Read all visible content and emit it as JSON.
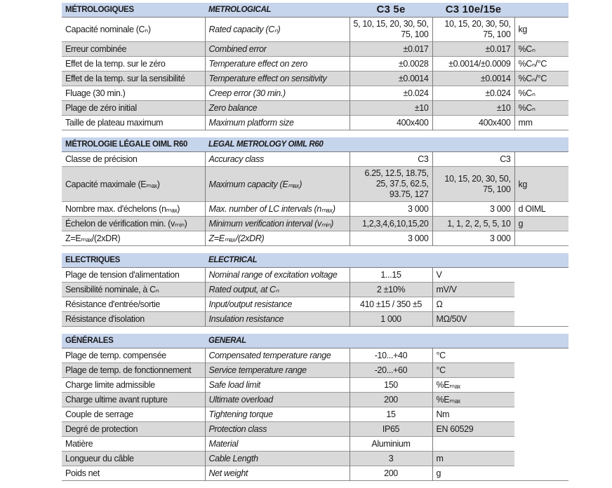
{
  "sections": [
    {
      "id": "metrology",
      "header": {
        "fr": "MÉTROLOGIQUES",
        "en": "METROLOGICAL",
        "col1": "C3 5e",
        "col2": "C3 10e/15e"
      },
      "rows": [
        {
          "fr": "Capacité nominale (Cₙ)",
          "en": "Rated capacity (Cₙ)",
          "v1": "5, 10, 15, 20, 30, 50, 75, 100",
          "v2": "10, 15, 20, 30, 50, 75, 100",
          "unit": "kg",
          "gray": false
        },
        {
          "fr": "Erreur combinée",
          "en": "Combined error",
          "v1": "±0.017",
          "v2": "±0.017",
          "unit": "%Cₙ",
          "gray": true
        },
        {
          "fr": "Effet de la temp. sur le zéro",
          "en": "Temperature effect on zero",
          "v1": "±0.0028",
          "v2": "±0.0014/±0.0009",
          "unit": "%Cₙ/°C",
          "gray": false
        },
        {
          "fr": "Effet de la temp. sur la sensibilité",
          "en": "Temperature effect on sensitivity",
          "v1": "±0.0014",
          "v2": "±0.0014",
          "unit": "%Cₙ/°C",
          "gray": true
        },
        {
          "fr": "Fluage (30 min.)",
          "en": "Creep error (30 min.)",
          "v1": "±0.024",
          "v2": "±0.024",
          "unit": "%Cₙ",
          "gray": false
        },
        {
          "fr": "Plage de zéro initial",
          "en": "Zero balance",
          "v1": "±10",
          "v2": "±10",
          "unit": "%Cₙ",
          "gray": true
        },
        {
          "fr": "Taille de plateau maximum",
          "en": "Maximum platform size",
          "v1": "400x400",
          "v2": "400x400",
          "unit": "mm",
          "gray": false
        }
      ]
    },
    {
      "id": "legal-metrology",
      "header": {
        "fr": "MÉTROLOGIE LÉGALE OIML R60",
        "en": "LEGAL METROLOGY OIML R60"
      },
      "rows": [
        {
          "fr": "Classe de précision",
          "en": "Accuracy class",
          "v1": "C3",
          "v2": "C3",
          "unit": "",
          "gray": false
        },
        {
          "fr": "Capacité maximale (Eₘₐₓ)",
          "en": "Maximum capacity (Eₘₐₓ)",
          "v1": "6.25, 12.5, 18.75, 25, 37.5, 62.5, 93.75, 127",
          "v2": "10, 15, 20, 30, 50, 75, 100",
          "unit": "kg",
          "gray": true
        },
        {
          "fr": "Nombre max. d'échelons (nₘₐₓ)",
          "en": "Max. number of LC intervals (nₘₐₓ)",
          "v1": "3 000",
          "v2": "3 000",
          "unit": "d OIML",
          "gray": false
        },
        {
          "fr": "Échelon de vérification min. (vₘᵢₙ)",
          "en": "Minimum verification interval (vₘᵢₙ)",
          "v1": "1,2,3,4,6,10,15,20",
          "v2": "1, 1, 2, 2, 5, 5, 10",
          "unit": "g",
          "gray": true
        },
        {
          "fr": "Z=Eₘₐₓ/(2xDR)",
          "en": "Z=Eₘₐₓ/(2xDR)",
          "v1": "3 000",
          "v2": "3 000",
          "unit": "",
          "gray": false
        }
      ]
    },
    {
      "id": "electrical",
      "header": {
        "fr": "ELECTRIQUES",
        "en": "ELECTRICAL"
      },
      "rows": [
        {
          "fr": "Plage de tension d'alimentation",
          "en": "Nominal range of excitation voltage",
          "v": "1...15",
          "unit": "V",
          "gray": false
        },
        {
          "fr": "Sensibilité nominale, à Cₙ",
          "en": "Rated output, at Cₙ",
          "v": "2 ±10%",
          "unit": "mV/V",
          "gray": true
        },
        {
          "fr": "Résistance d'entrée/sortie",
          "en": "Input/output resistance",
          "v": "410 ±15 / 350 ±5",
          "unit": "Ω",
          "gray": false
        },
        {
          "fr": "Résistance d'isolation",
          "en": "Insulation resistance",
          "v": "1 000",
          "unit": "MΩ/50V",
          "gray": true
        }
      ]
    },
    {
      "id": "general",
      "header": {
        "fr": "GÉNÉRALES",
        "en": "GENERAL"
      },
      "rows": [
        {
          "fr": "Plage de temp. compensée",
          "en": "Compensated temperature range",
          "v": "-10...+40",
          "unit": "°C",
          "gray": false
        },
        {
          "fr": "Plage de temp. de fonctionnement",
          "en": "Service temperature range",
          "v": "-20...+60",
          "unit": "°C",
          "gray": true
        },
        {
          "fr": "Charge limite admissible",
          "en": "Safe load limit",
          "v": "150",
          "unit": "%Eₘₐₓ",
          "gray": false
        },
        {
          "fr": "Charge ultime avant rupture",
          "en": "Ultimate overload",
          "v": "200",
          "unit": "%Eₘₐₓ",
          "gray": true
        },
        {
          "fr": "Couple de serrage",
          "en": "Tightening torque",
          "v": "15",
          "unit": "Nm",
          "gray": false
        },
        {
          "fr": "Degré de protection",
          "en": "Protection class",
          "v": "IP65",
          "unit": "EN 60529",
          "gray": true
        },
        {
          "fr": "Matière",
          "en": "Material",
          "v": "Aluminium",
          "unit": "",
          "gray": false
        },
        {
          "fr": "Longueur du câble",
          "en": "Cable Length",
          "v": "3",
          "unit": "m",
          "gray": true
        },
        {
          "fr": "Poids net",
          "en": "Net weight",
          "v": "200",
          "unit": "g",
          "gray": false
        }
      ]
    }
  ]
}
